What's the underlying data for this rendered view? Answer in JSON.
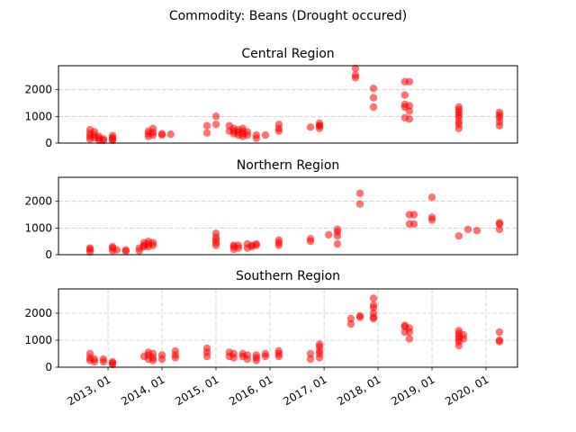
{
  "figure": {
    "suptitle": "Commodity: Beans (Drought occured)"
  },
  "chart_data": [
    {
      "type": "scatter",
      "title": "Central Region",
      "xlabel": "",
      "ylabel": "",
      "xlim": [
        "2012-02-01",
        "2020-08-01"
      ],
      "ylim": [
        0,
        2900
      ],
      "yticks": [
        0,
        1000,
        2000
      ],
      "x_tick_labels_shown": false,
      "grid": "y-dashed",
      "marker_color": "#ff0000",
      "points": [
        [
          "2012-09-01",
          150
        ],
        [
          "2012-09-01",
          250
        ],
        [
          "2012-09-01",
          350
        ],
        [
          "2012-09-01",
          500
        ],
        [
          "2012-10-01",
          200
        ],
        [
          "2012-10-01",
          300
        ],
        [
          "2012-10-01",
          420
        ],
        [
          "2012-11-01",
          100
        ],
        [
          "2012-11-01",
          180
        ],
        [
          "2012-11-01",
          250
        ],
        [
          "2012-12-01",
          100
        ],
        [
          "2012-12-01",
          160
        ],
        [
          "2013-02-01",
          100
        ],
        [
          "2013-02-01",
          200
        ],
        [
          "2013-02-01",
          280
        ],
        [
          "2013-02-01",
          150
        ],
        [
          "2013-10-01",
          250
        ],
        [
          "2013-10-01",
          350
        ],
        [
          "2013-10-01",
          450
        ],
        [
          "2013-11-01",
          300
        ],
        [
          "2013-11-01",
          400
        ],
        [
          "2013-11-01",
          550
        ],
        [
          "2014-01-01",
          350
        ],
        [
          "2014-01-01",
          300
        ],
        [
          "2014-03-01",
          330
        ],
        [
          "2014-11-01",
          380
        ],
        [
          "2014-11-01",
          650
        ],
        [
          "2015-01-01",
          700
        ],
        [
          "2015-01-01",
          1000
        ],
        [
          "2015-04-01",
          450
        ],
        [
          "2015-04-01",
          650
        ],
        [
          "2015-05-01",
          350
        ],
        [
          "2015-05-01",
          450
        ],
        [
          "2015-05-01",
          550
        ],
        [
          "2015-06-01",
          300
        ],
        [
          "2015-06-01",
          400
        ],
        [
          "2015-06-01",
          500
        ],
        [
          "2015-07-01",
          250
        ],
        [
          "2015-07-01",
          350
        ],
        [
          "2015-07-01",
          450
        ],
        [
          "2015-07-01",
          550
        ],
        [
          "2015-08-01",
          300
        ],
        [
          "2015-08-01",
          420
        ],
        [
          "2015-10-01",
          180
        ],
        [
          "2015-10-01",
          300
        ],
        [
          "2015-12-01",
          300
        ],
        [
          "2016-03-01",
          450
        ],
        [
          "2016-03-01",
          550
        ],
        [
          "2016-03-01",
          700
        ],
        [
          "2016-10-01",
          600
        ],
        [
          "2016-12-01",
          550
        ],
        [
          "2016-12-01",
          650
        ],
        [
          "2016-12-01",
          750
        ],
        [
          "2016-12-01",
          650
        ],
        [
          "2017-08-01",
          2450
        ],
        [
          "2017-08-01",
          2550
        ],
        [
          "2017-08-01",
          2800
        ],
        [
          "2017-12-01",
          1350
        ],
        [
          "2017-12-01",
          1700
        ],
        [
          "2017-12-01",
          2050
        ],
        [
          "2018-07-01",
          1450
        ],
        [
          "2018-07-01",
          1800
        ],
        [
          "2018-07-01",
          2300
        ],
        [
          "2018-07-01",
          950
        ],
        [
          "2018-07-01",
          1350
        ],
        [
          "2018-08-01",
          900
        ],
        [
          "2018-08-01",
          1200
        ],
        [
          "2018-08-01",
          1400
        ],
        [
          "2018-08-01",
          2300
        ],
        [
          "2019-07-01",
          550
        ],
        [
          "2019-07-01",
          700
        ],
        [
          "2019-07-01",
          800
        ],
        [
          "2019-07-01",
          950
        ],
        [
          "2019-07-01",
          1050
        ],
        [
          "2019-07-01",
          1150
        ],
        [
          "2019-07-01",
          1250
        ],
        [
          "2019-07-01",
          1350
        ],
        [
          "2020-04-01",
          650
        ],
        [
          "2020-04-01",
          800
        ],
        [
          "2020-04-01",
          950
        ],
        [
          "2020-04-01",
          1050
        ],
        [
          "2020-04-01",
          1150
        ]
      ]
    },
    {
      "type": "scatter",
      "title": "Northern Region",
      "xlabel": "",
      "ylabel": "",
      "xlim": [
        "2012-02-01",
        "2020-08-01"
      ],
      "ylim": [
        0,
        2900
      ],
      "yticks": [
        0,
        1000,
        2000
      ],
      "x_tick_labels_shown": false,
      "grid": "y-dashed",
      "marker_color": "#ff0000",
      "points": [
        [
          "2012-09-01",
          100
        ],
        [
          "2012-09-01",
          200
        ],
        [
          "2012-09-01",
          250
        ],
        [
          "2013-02-01",
          150
        ],
        [
          "2013-02-01",
          250
        ],
        [
          "2013-02-01",
          300
        ],
        [
          "2013-03-01",
          180
        ],
        [
          "2013-05-01",
          130
        ],
        [
          "2013-05-01",
          180
        ],
        [
          "2013-08-01",
          150
        ],
        [
          "2013-08-01",
          250
        ],
        [
          "2013-09-01",
          300
        ],
        [
          "2013-09-01",
          350
        ],
        [
          "2013-09-01",
          450
        ],
        [
          "2013-10-01",
          300
        ],
        [
          "2013-10-01",
          400
        ],
        [
          "2013-10-01",
          500
        ],
        [
          "2013-11-01",
          350
        ],
        [
          "2013-11-01",
          450
        ],
        [
          "2015-01-01",
          350
        ],
        [
          "2015-01-01",
          450
        ],
        [
          "2015-01-01",
          550
        ],
        [
          "2015-01-01",
          650
        ],
        [
          "2015-01-01",
          800
        ],
        [
          "2015-05-01",
          200
        ],
        [
          "2015-05-01",
          300
        ],
        [
          "2015-05-01",
          350
        ],
        [
          "2015-06-01",
          250
        ],
        [
          "2015-06-01",
          350
        ],
        [
          "2015-08-01",
          250
        ],
        [
          "2015-08-01",
          400
        ],
        [
          "2015-09-01",
          300
        ],
        [
          "2015-09-01",
          350
        ],
        [
          "2015-10-01",
          350
        ],
        [
          "2015-10-01",
          400
        ],
        [
          "2016-03-01",
          350
        ],
        [
          "2016-03-01",
          450
        ],
        [
          "2016-03-01",
          550
        ],
        [
          "2016-10-01",
          500
        ],
        [
          "2016-10-01",
          600
        ],
        [
          "2017-02-01",
          750
        ],
        [
          "2017-04-01",
          400
        ],
        [
          "2017-04-01",
          700
        ],
        [
          "2017-04-01",
          850
        ],
        [
          "2017-04-01",
          950
        ],
        [
          "2017-09-01",
          1900
        ],
        [
          "2017-09-01",
          2300
        ],
        [
          "2018-08-01",
          1150
        ],
        [
          "2018-08-01",
          1500
        ],
        [
          "2018-09-01",
          1150
        ],
        [
          "2018-09-01",
          1500
        ],
        [
          "2019-01-01",
          1300
        ],
        [
          "2019-01-01",
          1400
        ],
        [
          "2019-01-01",
          2150
        ],
        [
          "2019-07-01",
          700
        ],
        [
          "2019-09-01",
          950
        ],
        [
          "2019-11-01",
          900
        ],
        [
          "2020-04-01",
          950
        ],
        [
          "2020-04-01",
          1150
        ],
        [
          "2020-04-01",
          1200
        ]
      ]
    },
    {
      "type": "scatter",
      "title": "Southern Region",
      "xlabel": "",
      "ylabel": "",
      "xlim": [
        "2012-02-01",
        "2020-08-01"
      ],
      "ylim": [
        0,
        2900
      ],
      "yticks": [
        0,
        1000,
        2000
      ],
      "x_tick_labels": [
        "2013, 01",
        "2014, 01",
        "2015, 01",
        "2016, 01",
        "2017, 01",
        "2018, 01",
        "2019, 01",
        "2020, 01"
      ],
      "x_tick_values": [
        "2013-01-01",
        "2014-01-01",
        "2015-01-01",
        "2016-01-01",
        "2017-01-01",
        "2018-01-01",
        "2019-01-01",
        "2020-01-01"
      ],
      "grid": "xy-dashed",
      "marker_color": "#ff0000",
      "points": [
        [
          "2012-09-01",
          250
        ],
        [
          "2012-09-01",
          350
        ],
        [
          "2012-09-01",
          500
        ],
        [
          "2012-10-01",
          200
        ],
        [
          "2012-10-01",
          300
        ],
        [
          "2012-12-01",
          200
        ],
        [
          "2012-12-01",
          300
        ],
        [
          "2013-02-01",
          100
        ],
        [
          "2013-02-01",
          150
        ],
        [
          "2013-02-01",
          200
        ],
        [
          "2013-09-01",
          400
        ],
        [
          "2013-10-01",
          300
        ],
        [
          "2013-10-01",
          450
        ],
        [
          "2013-10-01",
          550
        ],
        [
          "2013-11-01",
          250
        ],
        [
          "2013-11-01",
          350
        ],
        [
          "2013-11-01",
          500
        ],
        [
          "2014-01-01",
          300
        ],
        [
          "2014-01-01",
          450
        ],
        [
          "2014-04-01",
          350
        ],
        [
          "2014-04-01",
          450
        ],
        [
          "2014-04-01",
          600
        ],
        [
          "2014-11-01",
          400
        ],
        [
          "2014-11-01",
          550
        ],
        [
          "2014-11-01",
          700
        ],
        [
          "2015-04-01",
          400
        ],
        [
          "2015-04-01",
          550
        ],
        [
          "2015-05-01",
          350
        ],
        [
          "2015-05-01",
          500
        ],
        [
          "2015-07-01",
          400
        ],
        [
          "2015-07-01",
          500
        ],
        [
          "2015-08-01",
          300
        ],
        [
          "2015-08-01",
          450
        ],
        [
          "2015-10-01",
          250
        ],
        [
          "2015-10-01",
          350
        ],
        [
          "2015-10-01",
          450
        ],
        [
          "2015-12-01",
          400
        ],
        [
          "2015-12-01",
          500
        ],
        [
          "2016-03-01",
          400
        ],
        [
          "2016-03-01",
          500
        ],
        [
          "2016-03-01",
          600
        ],
        [
          "2016-10-01",
          300
        ],
        [
          "2016-10-01",
          500
        ],
        [
          "2016-12-01",
          500
        ],
        [
          "2016-12-01",
          600
        ],
        [
          "2016-12-01",
          750
        ],
        [
          "2016-12-01",
          850
        ],
        [
          "2016-12-01",
          350
        ],
        [
          "2017-07-01",
          1600
        ],
        [
          "2017-07-01",
          1800
        ],
        [
          "2017-09-01",
          1850
        ],
        [
          "2017-09-01",
          1900
        ],
        [
          "2017-12-01",
          1800
        ],
        [
          "2017-12-01",
          2000
        ],
        [
          "2017-12-01",
          2200
        ],
        [
          "2017-12-01",
          2300
        ],
        [
          "2017-12-01",
          2550
        ],
        [
          "2017-12-01",
          1850
        ],
        [
          "2018-07-01",
          1300
        ],
        [
          "2018-07-01",
          1500
        ],
        [
          "2018-07-01",
          1550
        ],
        [
          "2018-08-01",
          1050
        ],
        [
          "2018-08-01",
          1300
        ],
        [
          "2018-08-01",
          1450
        ],
        [
          "2019-07-01",
          800
        ],
        [
          "2019-07-01",
          950
        ],
        [
          "2019-07-01",
          1050
        ],
        [
          "2019-07-01",
          1150
        ],
        [
          "2019-07-01",
          1250
        ],
        [
          "2019-07-01",
          1350
        ],
        [
          "2019-08-01",
          1050
        ],
        [
          "2019-08-01",
          1200
        ],
        [
          "2020-04-01",
          950
        ],
        [
          "2020-04-01",
          1000
        ],
        [
          "2020-04-01",
          1300
        ]
      ]
    }
  ]
}
